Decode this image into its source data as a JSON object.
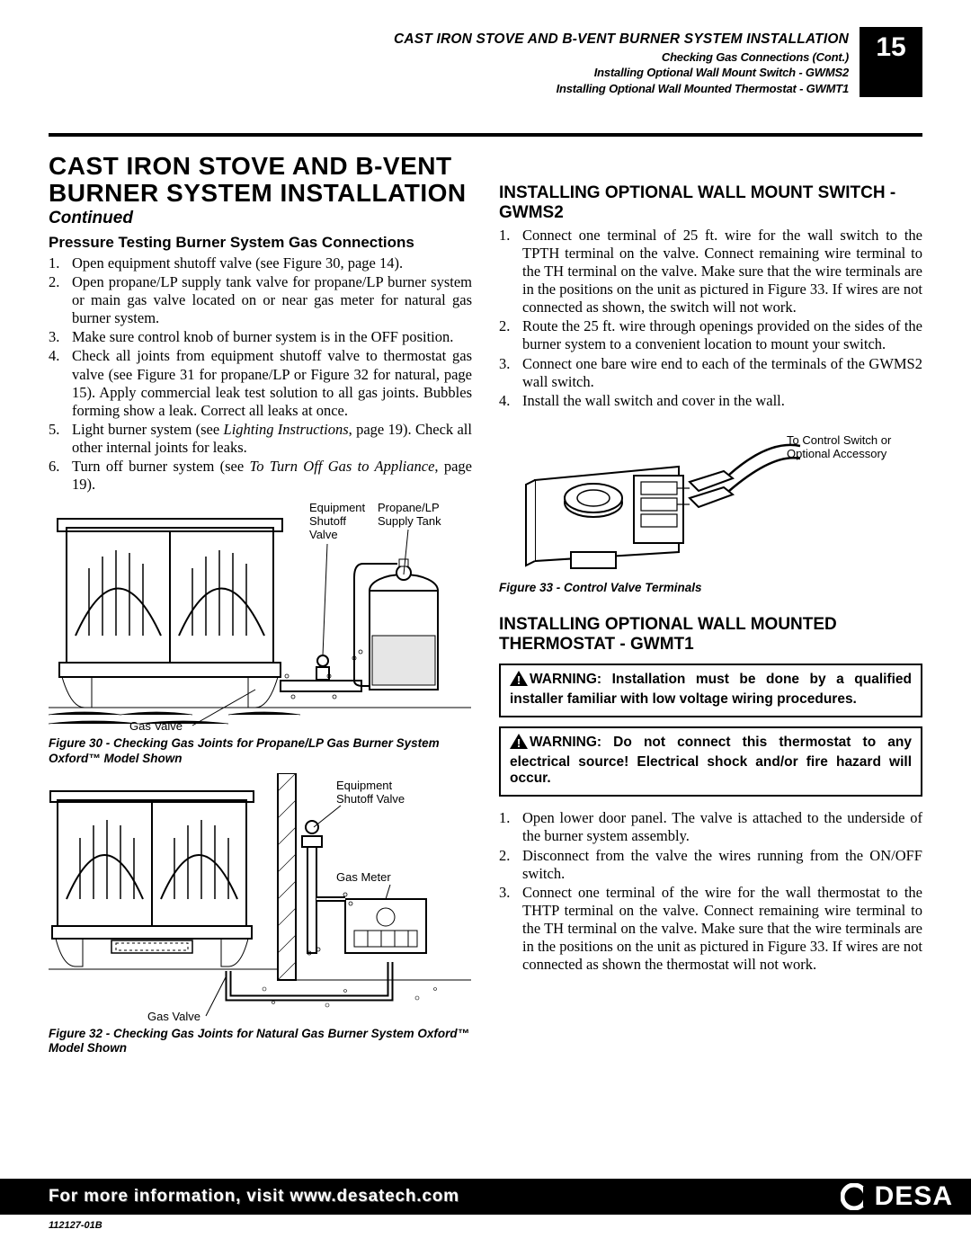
{
  "header": {
    "h1": "CAST IRON STOVE AND B-VENT BURNER SYSTEM INSTALLATION",
    "h2": "Checking Gas Connections (Cont.)",
    "h3": "Installing Optional Wall Mount Switch - GWMS2",
    "h4": "Installing Optional Wall Mounted Thermostat - GWMT1",
    "page": "15"
  },
  "title": "Cast Iron Stove and B-Vent Burner System Installation",
  "continued": "Continued",
  "left": {
    "subhead": "Pressure Testing Burner System Gas Connections",
    "list": [
      "Open equipment shutoff valve (see Figure 30, page 14).",
      "Open propane/LP supply tank valve for propane/LP burner system or  main gas valve located on or near gas meter for natural gas burner system.",
      "Make sure control knob of burner system is in the OFF position.",
      "Check all joints from equipment shutoff valve to thermostat gas valve (see Figure 31 for propane/LP or Figure 32 for natural, page 15). Apply commercial leak test solution to all gas joints. Bubbles forming show a leak. Correct all leaks at once.",
      "Light burner system (see <i>Lighting Instructions</i>, page 19). Check all other internal joints for leaks.",
      "Turn off burner system (see <i>To Turn Off Gas to Appliance</i>, page 19)."
    ],
    "fig30": {
      "labels": {
        "equip": "Equipment\nShutoff\nValve",
        "tank": "Propane/LP\nSupply Tank",
        "gasvalve": "Gas Valve"
      },
      "caption": "Figure 30 - Checking Gas Joints for Propane/LP Gas Burner System Oxford™ Model Shown"
    },
    "fig32": {
      "labels": {
        "equip": "Equipment\nShutoff Valve",
        "meter": "Gas Meter",
        "gasvalve": "Gas Valve"
      },
      "caption": "Figure 32 - Checking Gas Joints for Natural Gas Burner System Oxford™ Model Shown"
    }
  },
  "right": {
    "sec1_head": "INSTALLING OPTIONAL WALL MOUNT SWITCH - GWMS2",
    "sec1_list": [
      "Connect one terminal of 25 ft. wire for the wall switch to the TPTH terminal on the valve. Connect remaining wire terminal to the TH terminal on the valve. Make sure that the wire terminals are in the positions on the unit as pictured in Figure 33. If wires are not connected as shown, the switch will not work.",
      "Route the 25 ft. wire through openings provided on the sides of the burner system to a convenient location to mount your switch.",
      "Connect one bare wire end to each of the terminals of the GWMS2 wall switch.",
      "Install the wall switch and cover in the wall."
    ],
    "fig33": {
      "label": "To Control Switch or\nOptional Accessory",
      "caption": "Figure 33 - Control Valve Terminals"
    },
    "sec2_head": "INSTALLING OPTIONAL WALL MOUNTED THERMOSTAT - GWMT1",
    "warn1": "WARNING: Installation must be done by a qualified installer familiar with low voltage wiring procedures.",
    "warn2": "WARNING: Do not connect this thermostat to any electrical source! Electrical shock and/or fire hazard will occur.",
    "sec2_list": [
      "Open lower door panel. The valve is attached to the underside of the burner system assembly.",
      "Disconnect from the valve the wires running from the ON/OFF switch.",
      "Connect one terminal of the wire for the wall thermostat to the THTP terminal on the valve. Connect remaining wire terminal to the TH terminal on the valve. Make sure that the wire terminals are in the positions on the unit as pictured in Figure 33. If wires are not connected as shown  the thermostat will not work."
    ]
  },
  "footer": {
    "text": "For more information, visit www.desatech.com",
    "logo": "DESA",
    "docid": "112127-01B"
  }
}
